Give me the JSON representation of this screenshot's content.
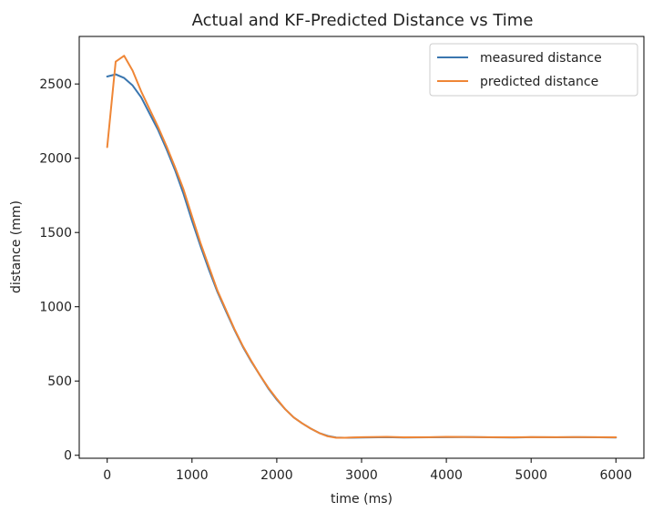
{
  "chart_data": {
    "type": "line",
    "title": "Actual and KF-Predicted Distance vs Time",
    "xlabel": "time (ms)",
    "ylabel": "distance (mm)",
    "xlim": [
      -330,
      6330
    ],
    "ylim": [
      -20,
      2820
    ],
    "xticks": [
      0,
      1000,
      2000,
      3000,
      4000,
      5000,
      6000
    ],
    "yticks": [
      0,
      500,
      1000,
      1500,
      2000,
      2500
    ],
    "grid": false,
    "legend_position": "top-right",
    "series": [
      {
        "name": "measured distance",
        "color": "#3a76af",
        "x": [
          0,
          100,
          200,
          300,
          400,
          500,
          600,
          700,
          800,
          900,
          1000,
          1100,
          1200,
          1300,
          1400,
          1500,
          1600,
          1700,
          1800,
          1900,
          2000,
          2100,
          2200,
          2300,
          2400,
          2500,
          2600,
          2700,
          2800,
          3000,
          3300,
          3500,
          3800,
          4000,
          4300,
          4500,
          4800,
          5000,
          5300,
          5500,
          5800,
          6000
        ],
        "y": [
          2550,
          2565,
          2540,
          2490,
          2410,
          2300,
          2190,
          2060,
          1920,
          1760,
          1580,
          1410,
          1250,
          1100,
          970,
          845,
          730,
          630,
          540,
          450,
          375,
          310,
          255,
          215,
          180,
          150,
          130,
          120,
          118,
          120,
          122,
          120,
          121,
          122,
          123,
          121,
          120,
          122,
          121,
          122,
          121,
          120
        ]
      },
      {
        "name": "predicted distance",
        "color": "#ef8636",
        "x": [
          0,
          100,
          200,
          300,
          400,
          500,
          600,
          700,
          800,
          900,
          1000,
          1100,
          1200,
          1300,
          1400,
          1500,
          1600,
          1700,
          1800,
          1900,
          2000,
          2100,
          2200,
          2300,
          2400,
          2500,
          2600,
          2700,
          2800,
          3000,
          3300,
          3500,
          3800,
          4000,
          4300,
          4500,
          4800,
          5000,
          5300,
          5500,
          5800,
          6000
        ],
        "y": [
          2075,
          2650,
          2690,
          2590,
          2450,
          2330,
          2210,
          2080,
          1940,
          1790,
          1610,
          1430,
          1270,
          1110,
          980,
          850,
          735,
          635,
          540,
          455,
          380,
          310,
          255,
          215,
          180,
          150,
          128,
          118,
          118,
          122,
          124,
          121,
          122,
          124,
          123,
          122,
          121,
          123,
          122,
          123,
          122,
          121
        ]
      }
    ]
  }
}
